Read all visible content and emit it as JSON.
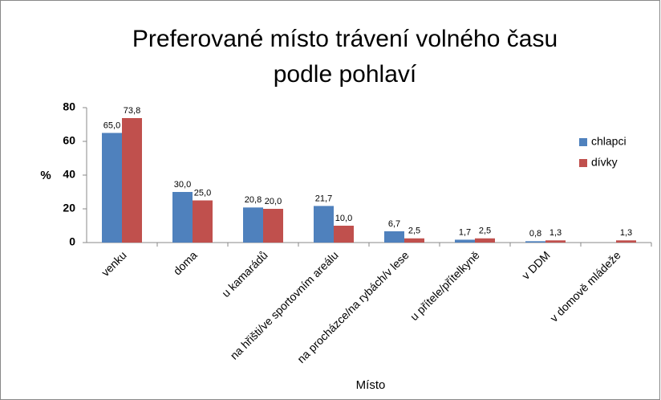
{
  "chart_data": {
    "type": "bar",
    "title": [
      "Preferované místo trávení volného času",
      "podle pohlaví"
    ],
    "y_label": "%",
    "x_label": "Místo",
    "categories": [
      "venku",
      "doma",
      "u kamarádů",
      "na hřišti/ve sportovním areálu",
      "na procházce/na rybách/v lese",
      "u přítele/přítelkyně",
      "v DDM",
      "v domově mládeže"
    ],
    "series": [
      {
        "name": "chlapci",
        "color": "#4f81bd",
        "values": [
          65.0,
          30.0,
          20.8,
          21.7,
          6.7,
          1.7,
          0.8,
          null
        ],
        "value_labels": [
          "65,0",
          "30,0",
          "20,8",
          "21,7",
          "6,7",
          "1,7",
          "0,8",
          null
        ]
      },
      {
        "name": "dívky",
        "color": "#c0504d",
        "values": [
          73.8,
          25.0,
          20.0,
          10.0,
          2.5,
          2.5,
          1.3,
          1.3
        ],
        "value_labels": [
          "73,8",
          "25,0",
          "20,0",
          "10,0",
          "2,5",
          "2,5",
          "1,3",
          "1,3"
        ]
      }
    ],
    "ylim": [
      0,
      80
    ],
    "yticks": [
      0,
      20,
      40,
      60,
      80
    ],
    "grid": false,
    "legend": "right"
  }
}
